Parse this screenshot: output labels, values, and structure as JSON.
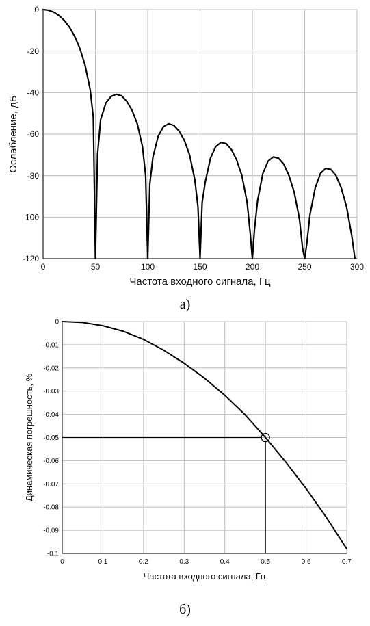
{
  "chart_data": [
    {
      "type": "line",
      "xlabel": "Частота входного сигнала, Гц",
      "ylabel": "Ослабление, дБ",
      "caption": "а)",
      "xlim": [
        0,
        300
      ],
      "ylim": [
        -120,
        0
      ],
      "xticks": [
        0,
        50,
        100,
        150,
        200,
        250,
        300
      ],
      "yticks": [
        0,
        -20,
        -40,
        -60,
        -80,
        -100,
        -120
      ],
      "xtick_labels": [
        "0",
        "50",
        "100",
        "150",
        "200",
        "250",
        "300"
      ],
      "ytick_labels": [
        "0",
        "-20",
        "-40",
        "-60",
        "-80",
        "-100",
        "-120"
      ],
      "grid": true,
      "series": [
        {
          "x": [
            0,
            5,
            10,
            15,
            20,
            25,
            30,
            35,
            40,
            45,
            48,
            50,
            52,
            55,
            60,
            65,
            70,
            75,
            80,
            85,
            90,
            95,
            98,
            100,
            102,
            105,
            110,
            115,
            120,
            125,
            130,
            135,
            140,
            145,
            148,
            150,
            152,
            155,
            160,
            165,
            170,
            175,
            180,
            185,
            190,
            195,
            198,
            200,
            202,
            205,
            210,
            215,
            220,
            225,
            230,
            235,
            240,
            245,
            248,
            250,
            252,
            255,
            260,
            265,
            270,
            275,
            280,
            285,
            290,
            295,
            298
          ],
          "y": [
            0,
            -0.3,
            -1.2,
            -2.8,
            -5.1,
            -8.3,
            -12.7,
            -18.5,
            -26.5,
            -38.5,
            -52,
            -120,
            -70,
            -53,
            -45,
            -41.8,
            -40.8,
            -41.5,
            -44.2,
            -48.5,
            -55,
            -66,
            -80,
            -120,
            -84,
            -71,
            -61,
            -56.4,
            -55,
            -55.8,
            -58.6,
            -63,
            -70,
            -82,
            -95,
            -120,
            -93,
            -83,
            -71.5,
            -66,
            -64,
            -64.6,
            -67.5,
            -72.5,
            -80,
            -93,
            -108,
            -120,
            -106,
            -92,
            -79,
            -73,
            -71,
            -71.6,
            -74.5,
            -80,
            -88,
            -101,
            -115,
            -120,
            -113,
            -99,
            -86,
            -79,
            -76.5,
            -77,
            -80,
            -86,
            -95,
            -109,
            -120
          ]
        }
      ]
    },
    {
      "type": "line",
      "xlabel": "Частота входного сигнала, Гц",
      "ylabel": "Динамическая погрешность, %",
      "caption": "б)",
      "xlim": [
        0,
        0.7
      ],
      "ylim": [
        -0.1,
        0
      ],
      "xticks": [
        0,
        0.1,
        0.2,
        0.3,
        0.4,
        0.5,
        0.6,
        0.7
      ],
      "yticks": [
        0,
        -0.01,
        -0.02,
        -0.03,
        -0.04,
        -0.05,
        -0.06,
        -0.07,
        -0.08,
        -0.09,
        -0.1
      ],
      "xtick_labels": [
        "0",
        "0.1",
        "0.2",
        "0.3",
        "0.4",
        "0.5",
        "0.6",
        "0.7"
      ],
      "ytick_labels": [
        "0",
        "-0.01",
        "-0.02",
        "-0.03",
        "-0.04",
        "-0.05",
        "-0.06",
        "-0.07",
        "-0.08",
        "-0.09",
        "-0.1"
      ],
      "grid": true,
      "series": [
        {
          "x": [
            0,
            0.05,
            0.1,
            0.15,
            0.2,
            0.25,
            0.3,
            0.35,
            0.4,
            0.45,
            0.5,
            0.55,
            0.6,
            0.65,
            0.7
          ],
          "y": [
            0,
            -0.0004,
            -0.0018,
            -0.0042,
            -0.0077,
            -0.0124,
            -0.018,
            -0.0244,
            -0.0318,
            -0.0402,
            -0.05,
            -0.0606,
            -0.072,
            -0.0845,
            -0.098
          ]
        }
      ],
      "annotations": [
        {
          "type": "marker",
          "shape": "circle",
          "x": 0.5,
          "y": -0.05
        }
      ]
    }
  ]
}
